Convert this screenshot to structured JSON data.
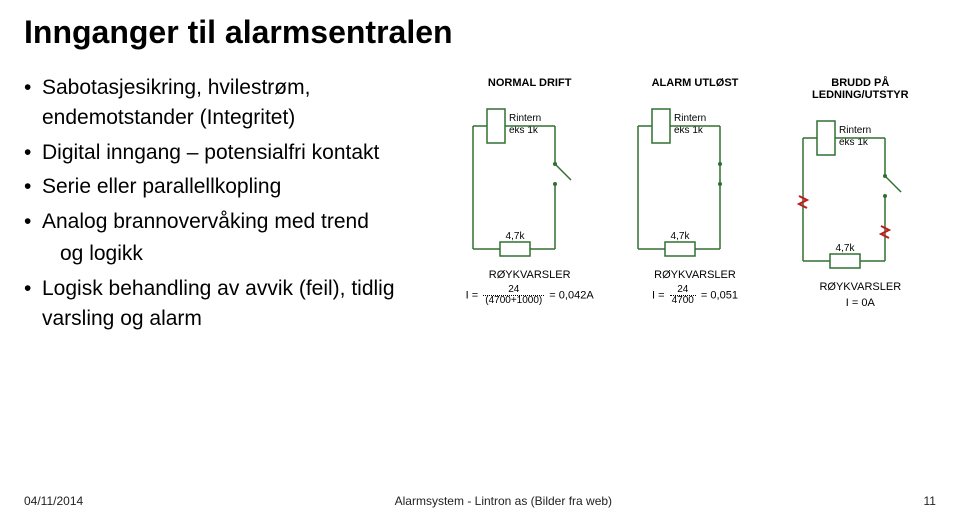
{
  "title": "Innganger til alarmsentralen",
  "title_fontsize": 32,
  "bullet_fontsize": 21,
  "bullet_lineheight": 1.45,
  "bullets": [
    {
      "text": "Sabotasjesikring, hvilestrøm, endemotstander (Integritet)"
    },
    {
      "text": "Digital inngang – potensialfri kontakt"
    },
    {
      "text": "Serie eller parallellkopling"
    },
    {
      "text": "Analog brannovervåking med trend og logikk",
      "sub_at": 29,
      "sub_text": "og logikk"
    },
    {
      "text": "Logisk behandling av avvik (feil), tidlig varsling og alarm"
    }
  ],
  "diagram": {
    "stroke_color": "#307030",
    "break_color": "#c01818",
    "text_color": "#000000",
    "bg_color": "#ffffff",
    "resistor_label": "Rintern",
    "resistor_sub": "eks 1k",
    "series_resistor": "4,7k",
    "device_label": "RØYKVARSLER",
    "circuits": [
      {
        "state": "NORMAL DRIFT",
        "switch_open": true,
        "broken": false,
        "calc": {
          "type": "fraction",
          "num": "24",
          "den": "(4700+1000)",
          "result": "0,042A"
        }
      },
      {
        "state": "ALARM UTLØST",
        "switch_open": false,
        "broken": false,
        "calc": {
          "type": "fraction",
          "num": "24",
          "den": "4700",
          "result": "0,051"
        }
      },
      {
        "state": "BRUDD PÅ LEDNING/UTSTYR",
        "switch_open": true,
        "broken": true,
        "calc": {
          "type": "simple",
          "text": "I = 0A"
        }
      }
    ]
  },
  "footer": {
    "date": "04/11/2014",
    "center": "Alarmsystem - Lintron as (Bilder fra web)",
    "page": "11"
  }
}
